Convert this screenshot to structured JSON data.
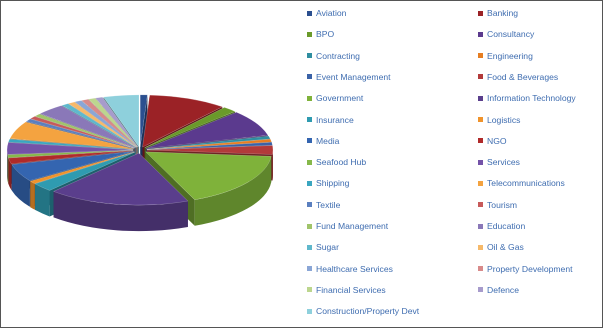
{
  "chart_data": {
    "type": "pie",
    "title": "",
    "style": "3d-exploded",
    "legend_position": "right",
    "series": [
      {
        "name": "Aviation",
        "value": 1,
        "color": "#2b4f8f"
      },
      {
        "name": "Banking",
        "value": 11,
        "color": "#9b2226"
      },
      {
        "name": "BPO",
        "value": 2,
        "color": "#6a9a2a"
      },
      {
        "name": "Consultancy",
        "value": 9,
        "color": "#5b3a8e"
      },
      {
        "name": "Contracting",
        "value": 1,
        "color": "#2f8ea0"
      },
      {
        "name": "Engineering",
        "value": 1,
        "color": "#e67e22"
      },
      {
        "name": "Event Management",
        "value": 1,
        "color": "#3a62a7"
      },
      {
        "name": "Food & Beverages",
        "value": 3,
        "color": "#b23a3a"
      },
      {
        "name": "Government",
        "value": 19,
        "color": "#7fb23a"
      },
      {
        "name": "Information Technology",
        "value": 20,
        "color": "#5a3e8c"
      },
      {
        "name": "Insurance",
        "value": 3,
        "color": "#2f9bb0"
      },
      {
        "name": "Logistics",
        "value": 1,
        "color": "#f0932b"
      },
      {
        "name": "Media",
        "value": 6,
        "color": "#3465b0"
      },
      {
        "name": "NGO",
        "value": 2,
        "color": "#b02a2a"
      },
      {
        "name": "Seafood Hub",
        "value": 1,
        "color": "#86b84a"
      },
      {
        "name": "Services",
        "value": 4,
        "color": "#7452a8"
      },
      {
        "name": "Shipping",
        "value": 1,
        "color": "#3aa6c0"
      },
      {
        "name": "Telecommunications",
        "value": 6,
        "color": "#f4a340"
      },
      {
        "name": "Textile",
        "value": 1,
        "color": "#5a7fbf"
      },
      {
        "name": "Tourism",
        "value": 1,
        "color": "#c75a5a"
      },
      {
        "name": "Fund Management",
        "value": 1,
        "color": "#a0c46a"
      },
      {
        "name": "Education",
        "value": 4,
        "color": "#8a78b8"
      },
      {
        "name": "Sugar",
        "value": 1,
        "color": "#5fb8cc"
      },
      {
        "name": "Oil & Gas",
        "value": 1,
        "color": "#f6b96a"
      },
      {
        "name": "Healthcare Services",
        "value": 1,
        "color": "#8aa6d6"
      },
      {
        "name": "Property Development",
        "value": 1,
        "color": "#d88a8a"
      },
      {
        "name": "Financial Services",
        "value": 1,
        "color": "#bcd68e"
      },
      {
        "name": "Defence",
        "value": 1,
        "color": "#a79bcc"
      },
      {
        "name": "Construction/Property Devt",
        "value": 5,
        "color": "#8ed0dc"
      }
    ]
  }
}
